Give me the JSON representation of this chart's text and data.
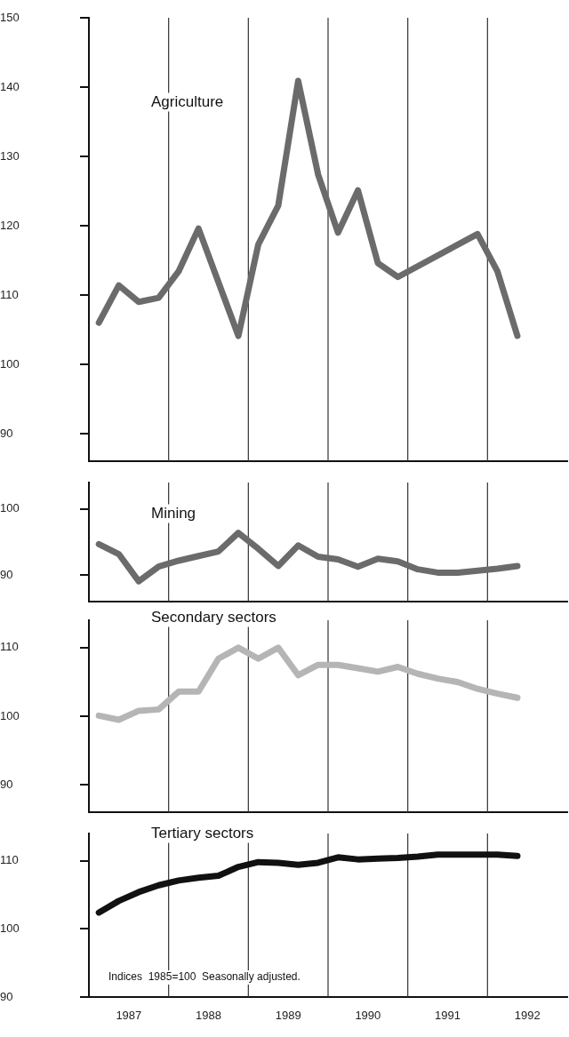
{
  "chart_data": [
    {
      "type": "line",
      "title": "Agriculture",
      "color": "#6b6b6b",
      "tick_labels": "y",
      "x": [
        1987.125,
        1987.375,
        1987.625,
        1987.875,
        1988.125,
        1988.375,
        1988.875,
        1989.125,
        1989.375,
        1989.625,
        1989.875,
        1990.125,
        1990.375,
        1990.625,
        1990.875,
        1991.875,
        1992.125,
        1992.375
      ],
      "values": [
        106,
        111.4,
        109,
        109.6,
        113.4,
        119.6,
        104.1,
        117.3,
        122.9,
        140.9,
        127.4,
        119,
        125.1,
        114.6,
        112.6,
        118.8,
        113.4,
        104.1
      ],
      "xlim": [
        1987,
        1993
      ],
      "ylim": [
        86,
        150
      ],
      "yticks": [
        90,
        100,
        110,
        120,
        130,
        140,
        150
      ],
      "ref_lines": [
        {
          "axis": "x",
          "value": 1988
        },
        {
          "axis": "x",
          "value": 1989
        },
        {
          "axis": "x",
          "value": 1990
        },
        {
          "axis": "x",
          "value": 1991
        },
        {
          "axis": "x",
          "value": 1992
        }
      ]
    },
    {
      "type": "line",
      "title": "Mining",
      "color": "#6b6b6b",
      "tick_labels": "y",
      "x": [
        1987.125,
        1987.375,
        1987.625,
        1987.875,
        1988.125,
        1988.375,
        1988.625,
        1988.875,
        1989.125,
        1989.375,
        1989.625,
        1989.875,
        1990.125,
        1990.375,
        1990.625,
        1990.875,
        1991.125,
        1991.375,
        1991.625,
        1991.875,
        1992.125,
        1992.375
      ],
      "values": [
        94.7,
        93.2,
        89.1,
        91.3,
        92.2,
        92.9,
        93.6,
        96.4,
        94,
        91.4,
        94.5,
        92.8,
        92.4,
        91.3,
        92.5,
        92.1,
        90.9,
        90.4,
        90.4,
        90.7,
        91,
        91.4
      ],
      "xlim": [
        1987,
        1993
      ],
      "ylim": [
        86,
        104
      ],
      "yticks": [
        90,
        100
      ],
      "ref_lines": [
        {
          "axis": "x",
          "value": 1988
        },
        {
          "axis": "x",
          "value": 1989
        },
        {
          "axis": "x",
          "value": 1990
        },
        {
          "axis": "x",
          "value": 1991
        },
        {
          "axis": "x",
          "value": 1992
        }
      ]
    },
    {
      "type": "line",
      "title": "Secondary sectors",
      "color": "#b5b5b5",
      "tick_labels": "y",
      "x": [
        1987.125,
        1987.375,
        1987.625,
        1987.875,
        1988.125,
        1988.375,
        1988.625,
        1988.875,
        1989.125,
        1989.375,
        1989.625,
        1989.875,
        1990.125,
        1990.375,
        1990.625,
        1990.875,
        1991.125,
        1991.375,
        1991.625,
        1991.875,
        1992.125,
        1992.375
      ],
      "values": [
        100.1,
        99.5,
        100.8,
        101,
        103.6,
        103.6,
        108.4,
        110,
        108.4,
        110,
        106,
        107.5,
        107.5,
        107,
        106.5,
        107.2,
        106.2,
        105.5,
        105,
        104,
        103.3,
        102.7
      ],
      "xlim": [
        1987,
        1993
      ],
      "ylim": [
        86,
        114
      ],
      "yticks": [
        90,
        100,
        110
      ],
      "ref_lines": [
        {
          "axis": "x",
          "value": 1988
        },
        {
          "axis": "x",
          "value": 1989
        },
        {
          "axis": "x",
          "value": 1990
        },
        {
          "axis": "x",
          "value": 1991
        },
        {
          "axis": "x",
          "value": 1992
        }
      ]
    },
    {
      "type": "line",
      "title": "Tertiary sectors",
      "color": "#111111",
      "x": [
        1987.125,
        1987.375,
        1987.625,
        1987.875,
        1988.125,
        1988.375,
        1988.625,
        1988.875,
        1989.125,
        1989.375,
        1989.625,
        1989.875,
        1990.125,
        1990.375,
        1990.625,
        1990.875,
        1991.125,
        1991.375,
        1991.625,
        1991.875,
        1992.125,
        1992.375
      ],
      "values": [
        102.4,
        104.1,
        105.4,
        106.4,
        107.1,
        107.5,
        107.8,
        109.1,
        109.8,
        109.7,
        109.4,
        109.7,
        110.5,
        110.2,
        110.3,
        110.4,
        110.6,
        110.9,
        110.9,
        110.9,
        110.9,
        110.7
      ],
      "xlim": [
        1987,
        1993
      ],
      "ylim": [
        90,
        114
      ],
      "yticks": [
        90,
        100,
        110
      ],
      "xticks": [
        {
          "value": 1987.5,
          "label": "1987"
        },
        {
          "value": 1988.5,
          "label": "1988"
        },
        {
          "value": 1989.5,
          "label": "1989"
        },
        {
          "value": 1990.5,
          "label": "1990"
        },
        {
          "value": 1991.5,
          "label": "1991"
        },
        {
          "value": 1992.5,
          "label": "1992"
        }
      ],
      "annotations": [
        "Indices  1985=100  Seasonally adjusted."
      ],
      "ref_lines": [
        {
          "axis": "x",
          "value": 1988
        },
        {
          "axis": "x",
          "value": 1989
        },
        {
          "axis": "x",
          "value": 1990
        },
        {
          "axis": "x",
          "value": 1991
        },
        {
          "axis": "x",
          "value": 1992
        }
      ]
    }
  ]
}
